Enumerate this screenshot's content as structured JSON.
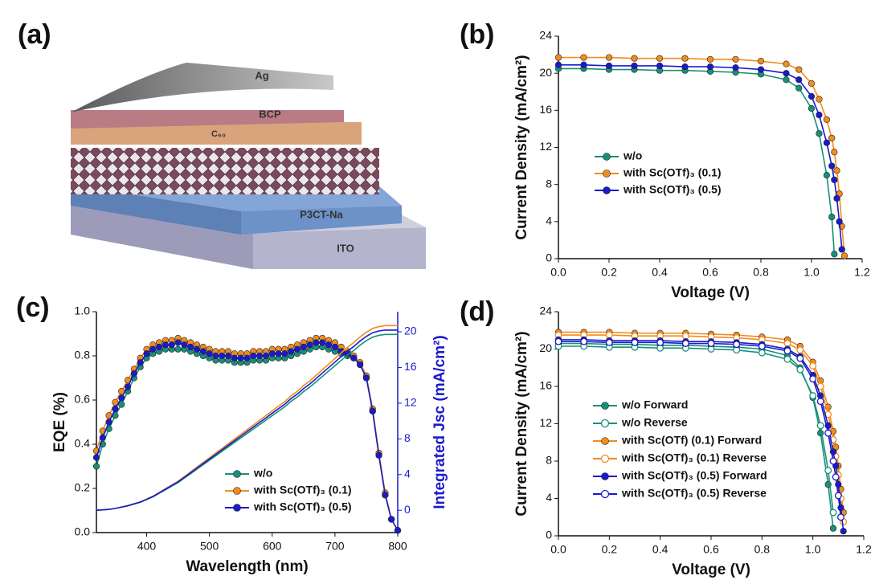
{
  "panel_a": {
    "label": "(a)",
    "layers": [
      "Ag",
      "BCP",
      "C₆₀",
      "P3CT-Na",
      "ITO"
    ]
  },
  "chart_data": [
    {
      "type": "line",
      "panel": "(b)",
      "xlabel": "Voltage (V)",
      "ylabel": "Current Density (mA/cm²)",
      "x": [
        0,
        0.1,
        0.2,
        0.3,
        0.4,
        0.5,
        0.6,
        0.7,
        0.8,
        0.9,
        0.95,
        1.0,
        1.03,
        1.06,
        1.08,
        1.09,
        1.1,
        1.11,
        1.12,
        1.13
      ],
      "xlim": [
        0,
        1.2
      ],
      "xticks": [
        {
          "value": 0,
          "label": "0.0"
        },
        0.2,
        0.4,
        0.6,
        0.8,
        {
          "value": 1,
          "label": "1.0"
        },
        1.2
      ],
      "ylim": [
        0,
        24
      ],
      "yticks": [
        0,
        4,
        8,
        12,
        16,
        20,
        24
      ],
      "series": [
        {
          "name": "w/o",
          "color": "#17907a",
          "values": [
            20.5,
            20.5,
            20.4,
            20.4,
            20.3,
            20.3,
            20.2,
            20.1,
            19.9,
            19.3,
            18.4,
            16.2,
            13.5,
            9.0,
            4.5,
            0.5,
            null,
            null,
            null,
            null
          ]
        },
        {
          "name": "with Sc(OTf)₃ (0.1)",
          "color": "#f28c1c",
          "values": [
            21.7,
            21.7,
            21.7,
            21.6,
            21.6,
            21.6,
            21.5,
            21.5,
            21.3,
            21.0,
            20.4,
            18.9,
            17.2,
            15.0,
            13.0,
            11.5,
            9.5,
            7.0,
            3.5,
            0.3
          ]
        },
        {
          "name": "with Sc(OTf)₃ (0.5)",
          "color": "#1a1acc",
          "values": [
            20.9,
            20.9,
            20.8,
            20.8,
            20.8,
            20.7,
            20.7,
            20.6,
            20.4,
            20.0,
            19.3,
            17.5,
            15.5,
            12.5,
            10.0,
            8.5,
            6.5,
            4.0,
            1.0,
            null
          ]
        }
      ]
    },
    {
      "type": "line",
      "panel": "(c)",
      "xlabel": "Wavelength (nm)",
      "ylabel": "EQE (%)",
      "y2label": "Integrated Jsc (mA/cm²)",
      "y2_color": "#1a1acc",
      "x": [
        320,
        330,
        340,
        350,
        360,
        370,
        380,
        390,
        400,
        410,
        420,
        430,
        440,
        450,
        460,
        470,
        480,
        490,
        500,
        510,
        520,
        530,
        540,
        550,
        560,
        570,
        580,
        590,
        600,
        610,
        620,
        630,
        640,
        650,
        660,
        670,
        680,
        690,
        700,
        710,
        720,
        730,
        740,
        750,
        760,
        770,
        780,
        790,
        800
      ],
      "xlim": [
        320,
        800
      ],
      "xticks": [
        400,
        500,
        600,
        700,
        800
      ],
      "ylim": [
        0,
        1.0
      ],
      "yticks": [
        {
          "value": 0,
          "label": "0.0"
        },
        0.2,
        0.4,
        0.6,
        0.8,
        {
          "value": 1,
          "label": "1.0"
        }
      ],
      "y2lim": [
        -2.5,
        22.25
      ],
      "y2ticks": [
        0,
        4,
        8,
        12,
        16,
        20
      ],
      "series": [
        {
          "name": "w/o",
          "color": "#17907a",
          "values": [
            0.3,
            0.4,
            0.47,
            0.53,
            0.58,
            0.64,
            0.7,
            0.75,
            0.79,
            0.81,
            0.82,
            0.83,
            0.83,
            0.83,
            0.83,
            0.82,
            0.81,
            0.8,
            0.79,
            0.78,
            0.78,
            0.78,
            0.77,
            0.77,
            0.77,
            0.78,
            0.78,
            0.78,
            0.79,
            0.79,
            0.79,
            0.8,
            0.81,
            0.82,
            0.83,
            0.84,
            0.84,
            0.83,
            0.82,
            0.81,
            0.8,
            0.79,
            0.76,
            0.7,
            0.55,
            0.35,
            0.17,
            0.06,
            0.01
          ]
        },
        {
          "name": "with Sc(OTf)₃ (0.1)",
          "color": "#f28c1c",
          "values": [
            0.37,
            0.46,
            0.53,
            0.59,
            0.64,
            0.69,
            0.74,
            0.79,
            0.83,
            0.85,
            0.86,
            0.87,
            0.87,
            0.88,
            0.87,
            0.86,
            0.85,
            0.84,
            0.83,
            0.82,
            0.82,
            0.82,
            0.81,
            0.81,
            0.81,
            0.82,
            0.82,
            0.82,
            0.83,
            0.83,
            0.83,
            0.84,
            0.85,
            0.86,
            0.87,
            0.88,
            0.88,
            0.87,
            0.86,
            0.84,
            0.82,
            0.8,
            0.77,
            0.71,
            0.56,
            0.36,
            0.18,
            0.06,
            0.01
          ]
        },
        {
          "name": "with Sc(OTf)₃ (0.5)",
          "color": "#1a1acc",
          "values": [
            0.34,
            0.43,
            0.5,
            0.56,
            0.61,
            0.66,
            0.72,
            0.77,
            0.81,
            0.83,
            0.84,
            0.85,
            0.85,
            0.86,
            0.85,
            0.84,
            0.83,
            0.82,
            0.81,
            0.8,
            0.8,
            0.8,
            0.79,
            0.79,
            0.79,
            0.8,
            0.8,
            0.8,
            0.81,
            0.81,
            0.81,
            0.82,
            0.83,
            0.84,
            0.85,
            0.86,
            0.86,
            0.85,
            0.84,
            0.82,
            0.81,
            0.79,
            0.76,
            0.7,
            0.55,
            0.35,
            0.17,
            0.06,
            0.01
          ]
        },
        {
          "axis": "y2",
          "markers": false,
          "color": "#17907a",
          "values": [
            0,
            0.05,
            0.1,
            0.2,
            0.35,
            0.5,
            0.7,
            0.9,
            1.2,
            1.5,
            1.9,
            2.3,
            2.7,
            3.1,
            3.6,
            4.1,
            4.6,
            5.1,
            5.6,
            6.1,
            6.6,
            7.1,
            7.6,
            8.1,
            8.6,
            9.1,
            9.6,
            10.1,
            10.6,
            11.1,
            11.6,
            12.2,
            12.7,
            13.3,
            13.8,
            14.4,
            15.0,
            15.6,
            16.2,
            16.8,
            17.4,
            17.9,
            18.5,
            19.0,
            19.4,
            19.6,
            19.7,
            19.7,
            19.7
          ]
        },
        {
          "axis": "y2",
          "markers": false,
          "color": "#f28c1c",
          "values": [
            0,
            0.05,
            0.1,
            0.2,
            0.37,
            0.53,
            0.74,
            0.95,
            1.26,
            1.58,
            2.0,
            2.42,
            2.84,
            3.26,
            3.78,
            4.31,
            4.83,
            5.36,
            5.88,
            6.41,
            6.93,
            7.46,
            7.98,
            8.51,
            9.03,
            9.56,
            10.08,
            10.61,
            11.13,
            11.66,
            12.18,
            12.81,
            13.34,
            13.97,
            14.49,
            15.12,
            15.75,
            16.38,
            17.01,
            17.64,
            18.27,
            18.8,
            19.43,
            19.95,
            20.37,
            20.58,
            20.69,
            20.69,
            20.69
          ]
        },
        {
          "axis": "y2",
          "markers": false,
          "color": "#1a1acc",
          "values": [
            0,
            0.05,
            0.1,
            0.21,
            0.36,
            0.51,
            0.72,
            0.92,
            1.23,
            1.54,
            1.95,
            2.36,
            2.77,
            3.18,
            3.69,
            4.2,
            4.72,
            5.23,
            5.74,
            6.25,
            6.77,
            7.28,
            7.79,
            8.3,
            8.82,
            9.33,
            9.84,
            10.35,
            10.87,
            11.38,
            11.89,
            12.51,
            13.02,
            13.63,
            14.15,
            14.76,
            15.38,
            15.99,
            16.61,
            17.22,
            17.84,
            18.35,
            18.96,
            19.48,
            19.89,
            20.09,
            20.19,
            20.19,
            20.19
          ]
        }
      ]
    },
    {
      "type": "line",
      "panel": "(d)",
      "xlabel": "Voltage (V)",
      "ylabel": "Current Density (mA/cm²)",
      "x": [
        0,
        0.1,
        0.2,
        0.3,
        0.4,
        0.5,
        0.6,
        0.7,
        0.8,
        0.9,
        0.95,
        1.0,
        1.03,
        1.06,
        1.08,
        1.09,
        1.1,
        1.11,
        1.12,
        1.13
      ],
      "xlim": [
        0,
        1.2
      ],
      "xticks": [
        {
          "value": 0,
          "label": "0.0"
        },
        0.2,
        0.4,
        0.6,
        0.8,
        {
          "value": 1,
          "label": "1.0"
        },
        1.2
      ],
      "ylim": [
        0,
        24
      ],
      "yticks": [
        0,
        4,
        8,
        12,
        16,
        20,
        24
      ],
      "series": [
        {
          "name": "w/o Forward",
          "color": "#17907a",
          "values": [
            20.6,
            20.6,
            20.5,
            20.5,
            20.4,
            20.4,
            20.3,
            20.2,
            20.0,
            19.3,
            18.0,
            14.8,
            11.0,
            5.5,
            0.8,
            null,
            null,
            null,
            null,
            null
          ]
        },
        {
          "name": "w/o Reverse",
          "color": "#17907a",
          "hollow": true,
          "values": [
            20.3,
            20.3,
            20.2,
            20.2,
            20.1,
            20.1,
            20.0,
            19.9,
            19.6,
            18.9,
            17.8,
            15.0,
            11.8,
            7.0,
            2.5,
            null,
            null,
            null,
            null,
            null
          ]
        },
        {
          "name": "with Sc(OTf) (0.1) Forward",
          "color": "#f28c1c",
          "values": [
            21.8,
            21.8,
            21.8,
            21.7,
            21.7,
            21.7,
            21.6,
            21.5,
            21.3,
            21.0,
            20.3,
            18.6,
            16.6,
            13.8,
            11.2,
            9.5,
            7.5,
            5.0,
            2.5,
            null
          ]
        },
        {
          "name": "with Sc(OTf)₃ (0.1) Reverse",
          "color": "#f28c1c",
          "hollow": true,
          "values": [
            21.5,
            21.5,
            21.5,
            21.4,
            21.4,
            21.4,
            21.3,
            21.2,
            21.0,
            20.6,
            19.9,
            18.2,
            16.0,
            13.0,
            10.3,
            8.5,
            6.5,
            4.0,
            1.5,
            null
          ]
        },
        {
          "name": "with Sc(OTf)₃ (0.5) Forward",
          "color": "#1a1acc",
          "values": [
            21.0,
            21.0,
            20.9,
            20.9,
            20.9,
            20.8,
            20.8,
            20.7,
            20.5,
            20.0,
            19.2,
            17.2,
            15.0,
            11.8,
            9.0,
            7.5,
            5.5,
            3.0,
            0.5,
            null
          ]
        },
        {
          "name": "with Sc(OTf)₃ (0.5) Reverse",
          "color": "#1a1acc",
          "hollow": true,
          "values": [
            20.8,
            20.8,
            20.7,
            20.7,
            20.7,
            20.6,
            20.6,
            20.5,
            20.3,
            19.8,
            19.0,
            16.8,
            14.4,
            11.0,
            8.0,
            6.3,
            4.3,
            2.0,
            null,
            null
          ]
        }
      ]
    }
  ]
}
